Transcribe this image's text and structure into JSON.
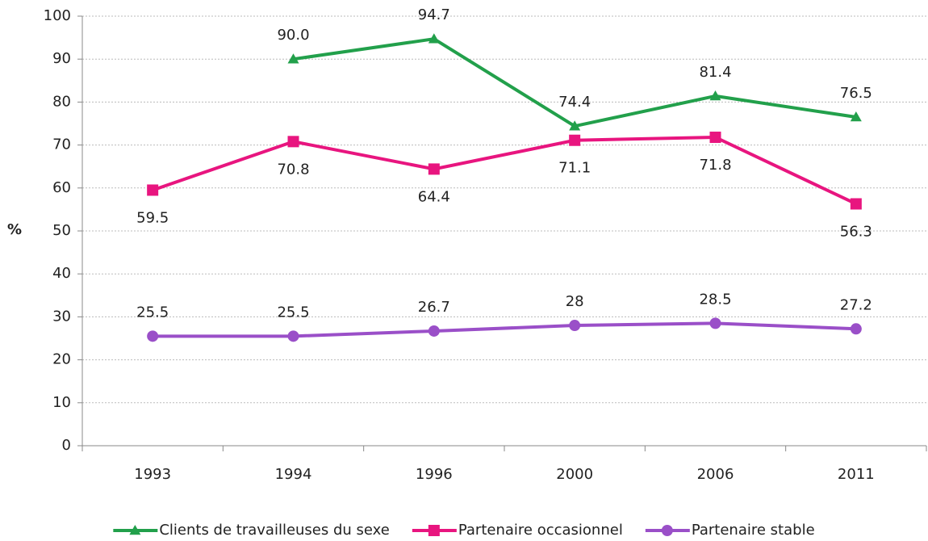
{
  "chart_data": {
    "type": "line",
    "y_label": "%",
    "categories": [
      "1993",
      "1994",
      "1996",
      "2000",
      "2006",
      "2011"
    ],
    "series": [
      {
        "name": "Clients de travailleuses du sexe",
        "color": "#22a04b",
        "marker": "triangle",
        "label_position": "above",
        "values": [
          null,
          90.0,
          94.7,
          74.4,
          81.4,
          76.5
        ],
        "value_labels": [
          null,
          "90.0",
          "94.7",
          "74.4",
          "81.4",
          "76.5"
        ]
      },
      {
        "name": "Partenaire occasionnel",
        "color": "#e8157f",
        "marker": "square",
        "label_position": "below",
        "values": [
          59.5,
          70.8,
          64.4,
          71.1,
          71.8,
          56.3
        ]
      },
      {
        "name": "Partenaire stable",
        "color": "#9a4fc8",
        "marker": "circle",
        "label_position": "above",
        "values": [
          25.5,
          25.5,
          26.7,
          28,
          28.5,
          27.2
        ]
      }
    ],
    "ylim": [
      0,
      100
    ],
    "yticks": [
      0,
      10,
      20,
      30,
      40,
      50,
      60,
      70,
      80,
      90,
      100
    ],
    "grid": true,
    "legend": "bottom"
  }
}
